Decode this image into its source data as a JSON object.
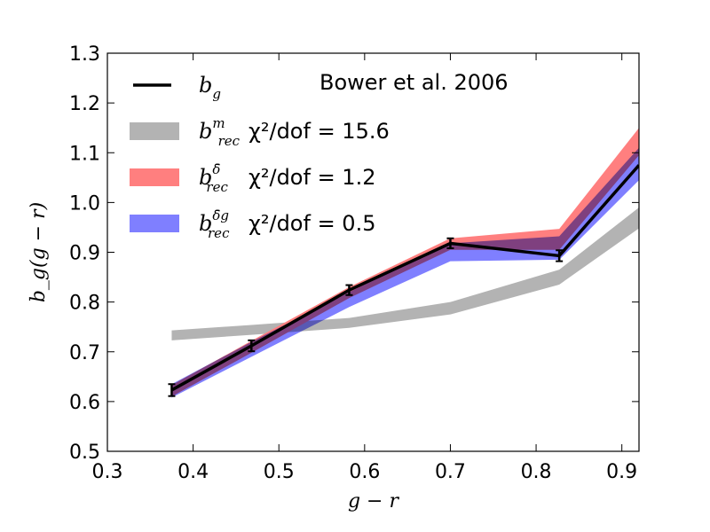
{
  "chart_data": {
    "type": "line",
    "annotation": "Bower et al. 2006",
    "xlabel": "g − r",
    "ylabel": "b_g(g − r)",
    "xlim": [
      0.3,
      0.92
    ],
    "ylim": [
      0.5,
      1.3
    ],
    "xticks": [
      "0.3",
      "0.4",
      "0.5",
      "0.6",
      "0.7",
      "0.8",
      "0.9"
    ],
    "yticks": [
      "0.5",
      "0.6",
      "0.7",
      "0.8",
      "0.9",
      "1.0",
      "1.1",
      "1.2",
      "1.3"
    ],
    "legend_position": "top-left",
    "series": [
      {
        "name": "b_g",
        "legend": {
          "main": "b",
          "sub": "g",
          "sup": "",
          "stat": ""
        },
        "kind": "line-errorbars",
        "color": "#000000",
        "x": [
          0.375,
          0.468,
          0.582,
          0.7,
          0.827,
          0.92
        ],
        "y": [
          0.623,
          0.712,
          0.824,
          0.918,
          0.893,
          1.075
        ],
        "err": [
          0.012,
          0.011,
          0.01,
          0.01,
          0.011,
          0.0
        ]
      },
      {
        "name": "b_rec^m",
        "legend": {
          "main": "b",
          "sub": "rec",
          "sup": "m",
          "stat": "χ²/dof = 15.6"
        },
        "kind": "band",
        "color": "#b3b3b3",
        "x": [
          0.375,
          0.468,
          0.582,
          0.7,
          0.827,
          0.92
        ],
        "lower": [
          0.723,
          0.734,
          0.748,
          0.775,
          0.835,
          0.948
        ],
        "upper": [
          0.743,
          0.754,
          0.768,
          0.8,
          0.865,
          0.99
        ]
      },
      {
        "name": "b_rec^δ̄",
        "legend": {
          "main": "b",
          "sub": "rec",
          "sup": "δ̄",
          "stat": "χ²/dof = 1.2"
        },
        "kind": "band",
        "color": "#ff7f7f",
        "x": [
          0.375,
          0.468,
          0.582,
          0.7,
          0.827,
          0.92
        ],
        "lower": [
          0.61,
          0.698,
          0.808,
          0.905,
          0.905,
          1.095
        ],
        "upper": [
          0.633,
          0.722,
          0.83,
          0.928,
          0.947,
          1.15
        ]
      },
      {
        "name": "b_rec^δ̄_g",
        "legend": {
          "main": "b",
          "sub": "rec",
          "sup": "δ̄g",
          "stat": "χ²/dof = 0.5"
        },
        "kind": "band",
        "color": "#7f7fff",
        "x": [
          0.375,
          0.468,
          0.582,
          0.7,
          0.827,
          0.92
        ],
        "lower": [
          0.608,
          0.69,
          0.79,
          0.882,
          0.885,
          1.045
        ],
        "upper": [
          0.635,
          0.72,
          0.82,
          0.918,
          0.932,
          1.11
        ]
      }
    ]
  }
}
